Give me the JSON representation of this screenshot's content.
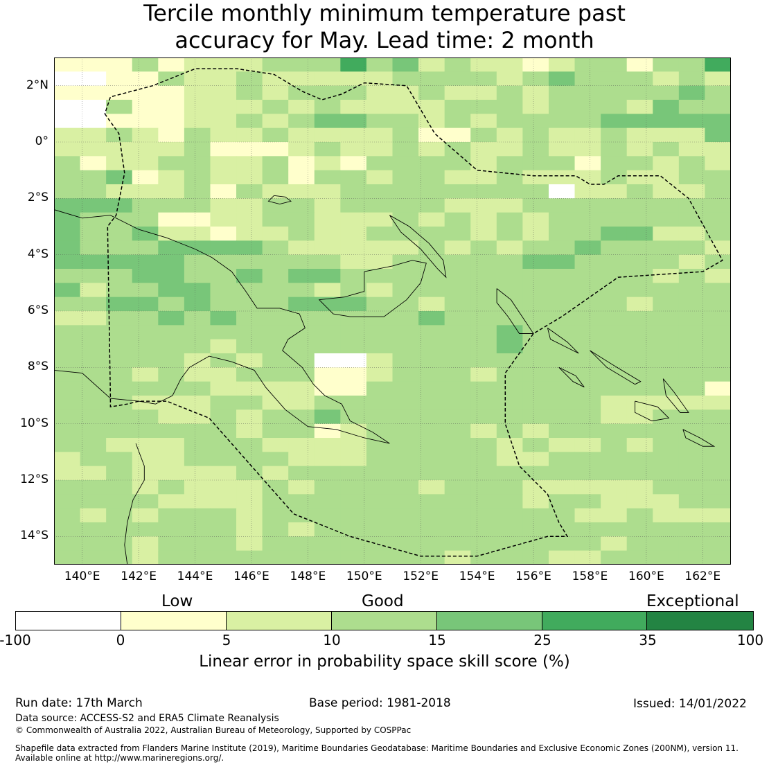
{
  "title_line1": "Tercile monthly minimum temperature past",
  "title_line2": "accuracy for May. Lead time: 2 month",
  "colors": {
    "white": "#ffffff",
    "c0": "#ffffcc",
    "c5": "#d9f0a3",
    "c10": "#addd8e",
    "c15": "#78c679",
    "c25": "#41ab5d",
    "c35": "#238443",
    "coast": "#000000",
    "grid": "#555555"
  },
  "map": {
    "lon_range": [
      139,
      163
    ],
    "lat_range": [
      -15,
      3
    ],
    "x_ticks": [
      {
        "lon": 140,
        "label": "140°E"
      },
      {
        "lon": 142,
        "label": "142°E"
      },
      {
        "lon": 144,
        "label": "144°E"
      },
      {
        "lon": 146,
        "label": "146°E"
      },
      {
        "lon": 148,
        "label": "148°E"
      },
      {
        "lon": 150,
        "label": "150°E"
      },
      {
        "lon": 152,
        "label": "152°E"
      },
      {
        "lon": 154,
        "label": "154°E"
      },
      {
        "lon": 156,
        "label": "156°E"
      },
      {
        "lon": 158,
        "label": "158°E"
      },
      {
        "lon": 160,
        "label": "160°E"
      },
      {
        "lon": 162,
        "label": "162°E"
      }
    ],
    "y_ticks": [
      {
        "lat": 2,
        "label": "2°N"
      },
      {
        "lat": 0,
        "label": "0°"
      },
      {
        "lat": -2,
        "label": "2°S"
      },
      {
        "lat": -4,
        "label": "4°S"
      },
      {
        "lat": -6,
        "label": "6°S"
      },
      {
        "lat": -8,
        "label": "8°S"
      },
      {
        "lat": -10,
        "label": "10°S"
      },
      {
        "lat": -12,
        "label": "12°S"
      },
      {
        "lat": -14,
        "label": "14°S"
      }
    ],
    "eez_boundary": [
      [
        140.8,
        1.0
      ],
      [
        141.3,
        0.3
      ],
      [
        141.5,
        -1.1
      ],
      [
        141.2,
        -2.6
      ],
      [
        140.9,
        -3.0
      ],
      [
        141.0,
        -9.1
      ],
      [
        141.0,
        -9.4
      ],
      [
        141.6,
        -9.3
      ],
      [
        142.0,
        -9.2
      ],
      [
        143.0,
        -9.2
      ],
      [
        144.5,
        -9.8
      ],
      [
        146.0,
        -11.5
      ],
      [
        147.5,
        -13.2
      ],
      [
        149.5,
        -14.0
      ],
      [
        152.0,
        -14.7
      ],
      [
        154.0,
        -14.7
      ],
      [
        156.5,
        -14.0
      ],
      [
        157.2,
        -14.0
      ],
      [
        156.9,
        -13.5
      ],
      [
        156.5,
        -12.5
      ],
      [
        155.5,
        -11.5
      ],
      [
        155.0,
        -10.0
      ],
      [
        155.0,
        -8.2
      ],
      [
        156.0,
        -6.8
      ],
      [
        157.0,
        -6.2
      ],
      [
        159.0,
        -4.8
      ],
      [
        162.0,
        -4.6
      ],
      [
        162.7,
        -4.2
      ],
      [
        161.5,
        -2.0
      ],
      [
        160.5,
        -1.2
      ],
      [
        159.0,
        -1.2
      ],
      [
        158.5,
        -1.5
      ],
      [
        158.0,
        -1.5
      ],
      [
        157.5,
        -1.2
      ],
      [
        156.0,
        -1.2
      ],
      [
        154.0,
        -1.0
      ],
      [
        152.5,
        0.3
      ],
      [
        151.5,
        2.0
      ],
      [
        150.0,
        2.1
      ],
      [
        149.2,
        1.7
      ],
      [
        148.5,
        1.5
      ],
      [
        147.8,
        1.8
      ],
      [
        146.8,
        2.4
      ],
      [
        145.5,
        2.6
      ],
      [
        144.0,
        2.6
      ],
      [
        142.5,
        2.0
      ],
      [
        141.0,
        1.6
      ],
      [
        140.8,
        1.0
      ]
    ],
    "coastlines": [
      [
        [
          139.0,
          -2.4
        ],
        [
          140.0,
          -2.7
        ],
        [
          141.0,
          -2.6
        ],
        [
          142.0,
          -3.1
        ],
        [
          143.0,
          -3.4
        ],
        [
          144.0,
          -3.8
        ],
        [
          144.6,
          -4.1
        ],
        [
          145.3,
          -4.6
        ],
        [
          145.8,
          -5.3
        ],
        [
          146.2,
          -5.9
        ],
        [
          147.0,
          -5.9
        ],
        [
          147.7,
          -6.1
        ],
        [
          147.9,
          -6.6
        ],
        [
          147.3,
          -7.0
        ],
        [
          147.1,
          -7.4
        ],
        [
          147.8,
          -8.0
        ],
        [
          148.2,
          -8.6
        ],
        [
          148.6,
          -9.0
        ],
        [
          149.2,
          -9.3
        ],
        [
          149.5,
          -9.9
        ],
        [
          150.3,
          -10.3
        ],
        [
          150.9,
          -10.7
        ],
        [
          150.0,
          -10.5
        ],
        [
          149.0,
          -10.2
        ],
        [
          148.0,
          -10.1
        ],
        [
          147.2,
          -9.5
        ],
        [
          146.5,
          -8.7
        ],
        [
          146.1,
          -8.1
        ],
        [
          145.3,
          -7.8
        ],
        [
          144.5,
          -7.6
        ],
        [
          143.8,
          -8.0
        ],
        [
          143.5,
          -8.4
        ],
        [
          143.2,
          -9.0
        ],
        [
          142.6,
          -9.3
        ],
        [
          142.0,
          -9.2
        ],
        [
          141.0,
          -9.1
        ],
        [
          140.0,
          -8.2
        ],
        [
          139.0,
          -8.1
        ]
      ],
      [
        [
          141.9,
          -10.7
        ],
        [
          142.2,
          -11.5
        ],
        [
          142.2,
          -12.0
        ],
        [
          141.8,
          -12.7
        ],
        [
          141.6,
          -13.5
        ],
        [
          141.5,
          -14.3
        ],
        [
          141.6,
          -15.0
        ]
      ],
      [
        [
          150.0,
          -4.6
        ],
        [
          151.0,
          -4.4
        ],
        [
          151.7,
          -4.2
        ],
        [
          152.2,
          -4.3
        ],
        [
          152.0,
          -5.0
        ],
        [
          151.5,
          -5.6
        ],
        [
          150.7,
          -6.2
        ],
        [
          149.5,
          -6.2
        ],
        [
          148.9,
          -6.1
        ],
        [
          148.4,
          -5.6
        ],
        [
          149.3,
          -5.5
        ],
        [
          150.0,
          -5.3
        ],
        [
          150.0,
          -4.6
        ]
      ],
      [
        [
          150.9,
          -2.6
        ],
        [
          151.6,
          -3.0
        ],
        [
          152.3,
          -3.6
        ],
        [
          152.8,
          -4.2
        ],
        [
          152.9,
          -4.8
        ],
        [
          152.6,
          -4.5
        ],
        [
          152.0,
          -3.8
        ],
        [
          151.3,
          -3.2
        ],
        [
          150.9,
          -2.6
        ]
      ],
      [
        [
          146.8,
          -1.9
        ],
        [
          147.2,
          -1.95
        ],
        [
          147.4,
          -2.1
        ],
        [
          147.0,
          -2.2
        ],
        [
          146.6,
          -2.1
        ],
        [
          146.8,
          -1.9
        ]
      ],
      [
        [
          154.7,
          -5.2
        ],
        [
          155.2,
          -5.6
        ],
        [
          155.6,
          -6.2
        ],
        [
          156.0,
          -6.8
        ],
        [
          155.5,
          -6.8
        ],
        [
          155.1,
          -6.2
        ],
        [
          154.7,
          -5.7
        ],
        [
          154.7,
          -5.2
        ]
      ],
      [
        [
          156.5,
          -6.6
        ],
        [
          157.2,
          -7.1
        ],
        [
          157.6,
          -7.5
        ],
        [
          157.2,
          -7.3
        ],
        [
          156.6,
          -7.0
        ],
        [
          156.5,
          -6.6
        ]
      ],
      [
        [
          158.0,
          -7.4
        ],
        [
          158.8,
          -7.9
        ],
        [
          159.8,
          -8.5
        ],
        [
          159.6,
          -8.6
        ],
        [
          158.6,
          -8.0
        ],
        [
          158.0,
          -7.4
        ]
      ],
      [
        [
          159.6,
          -9.2
        ],
        [
          160.4,
          -9.4
        ],
        [
          160.8,
          -9.8
        ],
        [
          160.2,
          -9.9
        ],
        [
          159.6,
          -9.6
        ],
        [
          159.6,
          -9.2
        ]
      ],
      [
        [
          160.6,
          -8.4
        ],
        [
          161.0,
          -8.9
        ],
        [
          161.5,
          -9.6
        ],
        [
          161.2,
          -9.6
        ],
        [
          160.7,
          -9.0
        ],
        [
          160.6,
          -8.4
        ]
      ],
      [
        [
          161.3,
          -10.2
        ],
        [
          161.9,
          -10.5
        ],
        [
          162.4,
          -10.8
        ],
        [
          162.0,
          -10.8
        ],
        [
          161.4,
          -10.5
        ],
        [
          161.3,
          -10.2
        ]
      ],
      [
        [
          156.9,
          -8.0
        ],
        [
          157.5,
          -8.3
        ],
        [
          157.8,
          -8.7
        ],
        [
          157.4,
          -8.5
        ],
        [
          156.9,
          -8.0
        ]
      ]
    ],
    "grid_cells": [
      "11131222333534232212331335",
      "00113223222223333234333232",
      "11111223233322322323333343",
      "00311222323222233323332433",
      "00111223234433232333344444",
      "22321322322223113232232224",
      "22222311123223232232232322",
      "31223322312133332333133232",
      "33412322313323322322232233",
      "33222313222333333330223223",
      "44433322332333322233333333",
      "43331122332223232323333333",
      "43342212232233332323344223",
      "43334444322222323233433332",
      "44444333333223333344333323",
      "33344334344333333333333232",
      "42334433332323333333333333",
      "33443433344433233333332333",
      "22334343333333433333333333",
      "33333333333333333433333333",
      "33333323333333333433333333",
      "33333232330023333333333333",
      "33323223331123332333333333",
      "33333322221133333333333331",
      "33322233223333333333322222",
      "33332232334333333333322333",
      "33333332331233332323333333",
      "33222333222233333232232333",
      "23322333322233333223333333",
      "22322223233333333333333333",
      "33323222323333233322222333",
      "33332222333333333323322233",
      "32323332333333333333223222",
      "33333332323333333333333333",
      "33323332333333333333323333",
      "33323333333333323332233333"
    ]
  },
  "legend": {
    "cat_low": "Low",
    "cat_good": "Good",
    "cat_exceptional": "Exceptional",
    "ticks": [
      "-100",
      "0",
      "5",
      "10",
      "15",
      "25",
      "35",
      "100"
    ],
    "label": "Linear error in probability space skill score (%)"
  },
  "footer": {
    "run_date": "Run date: 17th March",
    "base_period": "Base period: 1981-2018",
    "issued": "Issued: 14/01/2022",
    "data_source": "Data source: ACCESS-S2 and ERA5 Climate Reanalysis",
    "copyright": "© Commonwealth of Australia 2022, Australian Bureau of Meteorology, Supported by COSPPac",
    "shapefile1": "Shapefile data extracted from Flanders Marine Institute (2019), Maritime Boundaries Geodatabase: Maritime Boundaries and Exclusive Economic Zones (200NM), version 11.",
    "shapefile2": "Available online at http://www.marineregions.org/."
  }
}
